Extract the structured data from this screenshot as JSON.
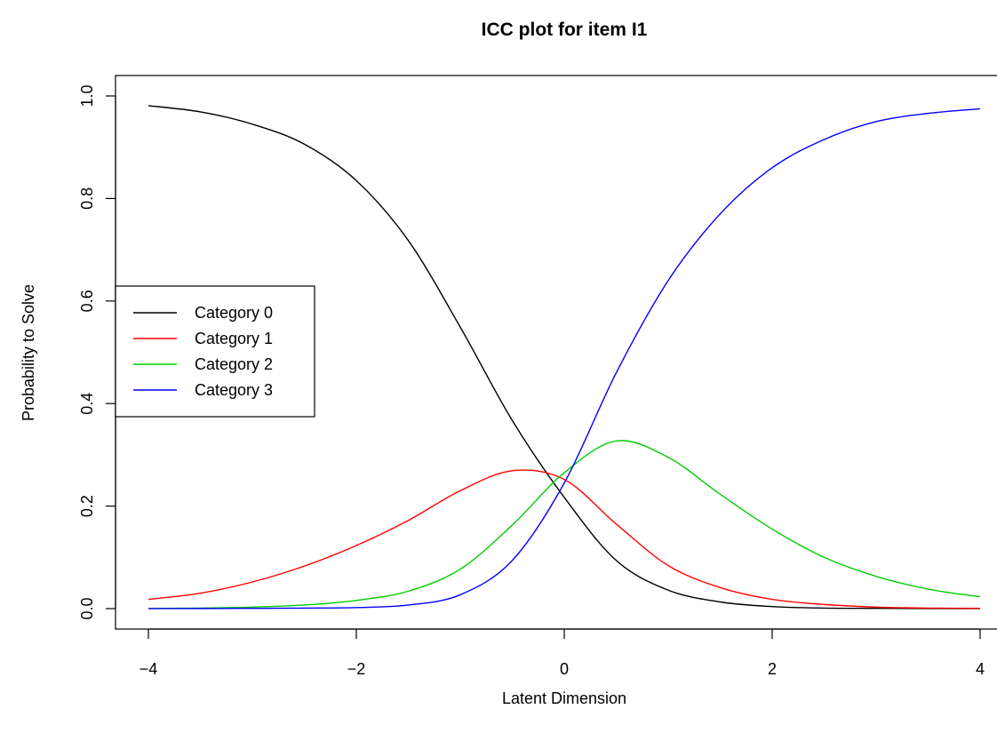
{
  "chart_data": {
    "type": "line",
    "title": "ICC plot for item  I1",
    "xlabel": "Latent Dimension",
    "ylabel": "Probability to Solve",
    "xlim": [
      -4,
      4
    ],
    "ylim": [
      0,
      1
    ],
    "x_ticks": [
      -4,
      -2,
      0,
      2,
      4
    ],
    "x_tick_labels": [
      "−4",
      "−2",
      "0",
      "2",
      "4"
    ],
    "y_ticks": [
      0,
      0.2,
      0.4,
      0.6,
      0.8,
      1
    ],
    "y_tick_labels": [
      "0.0",
      "0.2",
      "0.4",
      "0.6",
      "0.8",
      "1.0"
    ],
    "grid": false,
    "legend_position": "left",
    "x": [
      -4,
      -3.5,
      -3,
      -2.5,
      -2,
      -1.5,
      -1,
      -0.5,
      0,
      0.5,
      1,
      1.5,
      2,
      2.5,
      3,
      3.5,
      4
    ],
    "series": [
      {
        "name": "Category 0",
        "color": "#000000",
        "values": [
          0.981,
          0.969,
          0.945,
          0.906,
          0.835,
          0.718,
          0.549,
          0.367,
          0.217,
          0.094,
          0.036,
          0.013,
          0.004,
          0.001,
          0.0005,
          0.0002,
          0.0001
        ]
      },
      {
        "name": "Category 1",
        "color": "#ff0000",
        "values": [
          0.018,
          0.03,
          0.052,
          0.083,
          0.123,
          0.172,
          0.23,
          0.269,
          0.252,
          0.165,
          0.084,
          0.041,
          0.018,
          0.008,
          0.003,
          0.001,
          0.0005
        ]
      },
      {
        "name": "Category 2",
        "color": "#00cd00",
        "values": [
          0.0004,
          0.001,
          0.003,
          0.007,
          0.016,
          0.034,
          0.077,
          0.163,
          0.265,
          0.327,
          0.295,
          0.223,
          0.155,
          0.1,
          0.063,
          0.038,
          0.023
        ]
      },
      {
        "name": "Category 3",
        "color": "#0000ff",
        "values": [
          0.0001,
          0.0002,
          0.0005,
          0.001,
          0.002,
          0.007,
          0.027,
          0.094,
          0.245,
          0.46,
          0.64,
          0.77,
          0.86,
          0.915,
          0.95,
          0.966,
          0.975
        ]
      }
    ]
  }
}
